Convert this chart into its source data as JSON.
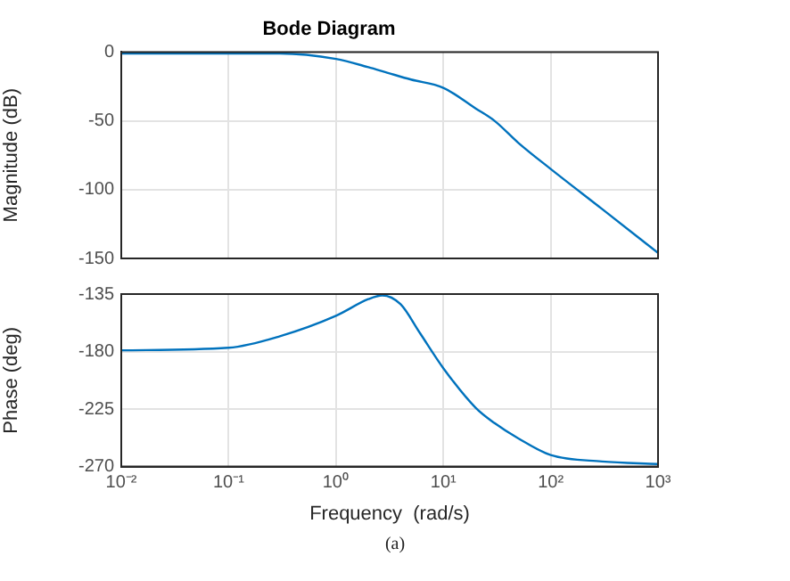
{
  "chart_data": [
    {
      "type": "line",
      "title": "Bode Diagram",
      "ylabel": "Magnitude (dB)",
      "log": "x",
      "grid": true,
      "legend": false,
      "marker": "none",
      "line_style": "solid",
      "tick_labels": "y",
      "xlim": [
        0.01,
        1000
      ],
      "xticks": [
        {
          "value": 0.01,
          "label": null
        },
        {
          "value": 0.1,
          "label": null
        },
        {
          "value": 1,
          "label": null
        },
        {
          "value": 10,
          "label": null
        },
        {
          "value": 100,
          "label": null
        },
        {
          "value": 1000,
          "label": null
        }
      ],
      "ylim": [
        -150,
        0
      ],
      "yticks": [
        -150,
        -100,
        -50,
        0
      ],
      "x": [
        0.01,
        0.1,
        0.3,
        1,
        2,
        3,
        5,
        10,
        20,
        30,
        50,
        100,
        300,
        1000
      ],
      "series": [
        {
          "color": "#0072bd",
          "values": [
            -1,
            -1,
            -1,
            -5,
            -11,
            -15,
            -20,
            -26,
            -41,
            -50,
            -66,
            -85,
            -114,
            -146
          ]
        }
      ]
    },
    {
      "type": "line",
      "xlabel": "Frequency  (rad/s)",
      "ylabel": "Phase (deg)",
      "log": "x",
      "grid": true,
      "legend": false,
      "marker": "none",
      "line_style": "solid",
      "xlim": [
        0.01,
        1000
      ],
      "xticks": [
        {
          "value": 0.01,
          "label": "10⁻²"
        },
        {
          "value": 0.1,
          "label": "10⁻¹"
        },
        {
          "value": 1,
          "label": "10⁰"
        },
        {
          "value": 10,
          "label": "10¹"
        },
        {
          "value": 100,
          "label": "10²"
        },
        {
          "value": 1000,
          "label": "10³"
        }
      ],
      "ylim": [
        -270,
        -135
      ],
      "yticks": [
        -270,
        -225,
        -180,
        -135
      ],
      "annotations": [
        "(a)"
      ],
      "x": [
        0.01,
        0.1,
        0.3,
        1,
        2,
        2.7,
        4,
        6,
        10,
        20,
        30,
        50,
        100,
        300,
        1000
      ],
      "series": [
        {
          "color": "#0072bd",
          "values": [
            -179,
            -177,
            -168,
            -152,
            -139,
            -136,
            -143,
            -165,
            -193,
            -224,
            -236,
            -248,
            -261,
            -266,
            -268
          ]
        }
      ]
    }
  ]
}
